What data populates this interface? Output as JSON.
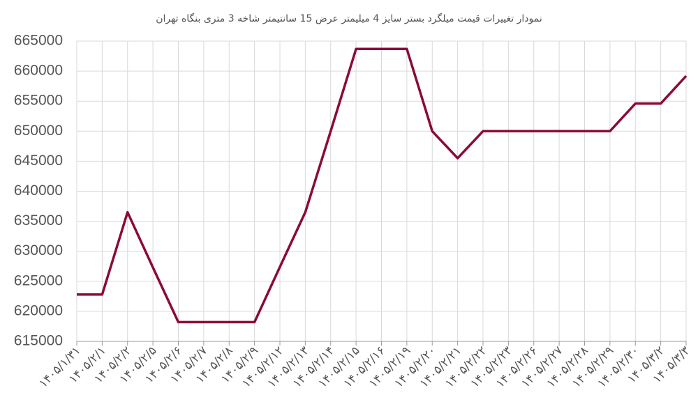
{
  "chart_data": {
    "type": "line",
    "title": "نمودار تغییرات قیمت میلگرد بستر سایز 4 میلیمتر عرض 15 سانتیمتر شاخه 3 متری بنگاه تهران",
    "categories": [
      "۱۴۰۵/۱/۳۱",
      "۱۴۰۵/۲/۱",
      "۱۴۰۵/۲/۲",
      "۱۴۰۵/۲/۵",
      "۱۴۰۵/۲/۶",
      "۱۴۰۵/۲/۷",
      "۱۴۰۵/۲/۸",
      "۱۴۰۵/۲/۹",
      "۱۴۰۵/۲/۱۲",
      "۱۴۰۵/۲/۱۳",
      "۱۴۰۵/۲/۱۴",
      "۱۴۰۵/۲/۱۵",
      "۱۴۰۵/۲/۱۶",
      "۱۴۰۵/۲/۱۹",
      "۱۴۰۵/۲/۲۰",
      "۱۴۰۵/۲/۲۱",
      "۱۴۰۵/۲/۲۲",
      "۱۴۰۵/۲/۲۳",
      "۱۴۰۵/۲/۲۶",
      "۱۴۰۵/۲/۲۷",
      "۱۴۰۵/۲/۲۸",
      "۱۴۰۵/۲/۲۹",
      "۱۴۰۵/۲/۳۰",
      "۱۴۰۵/۳/۲",
      "۱۴۰۵/۳/۳"
    ],
    "values": [
      622800,
      622800,
      636500,
      627300,
      618200,
      618200,
      618200,
      618200,
      627400,
      636500,
      650000,
      663700,
      663700,
      663700,
      650000,
      645500,
      650000,
      650000,
      650000,
      650000,
      650000,
      650000,
      654600,
      654600,
      659200
    ],
    "color": "#8b0a3a",
    "ylim": [
      615000,
      665000
    ],
    "yticks": [
      615000,
      620000,
      625000,
      630000,
      635000,
      640000,
      645000,
      650000,
      655000,
      660000,
      665000
    ],
    "grid": true
  }
}
